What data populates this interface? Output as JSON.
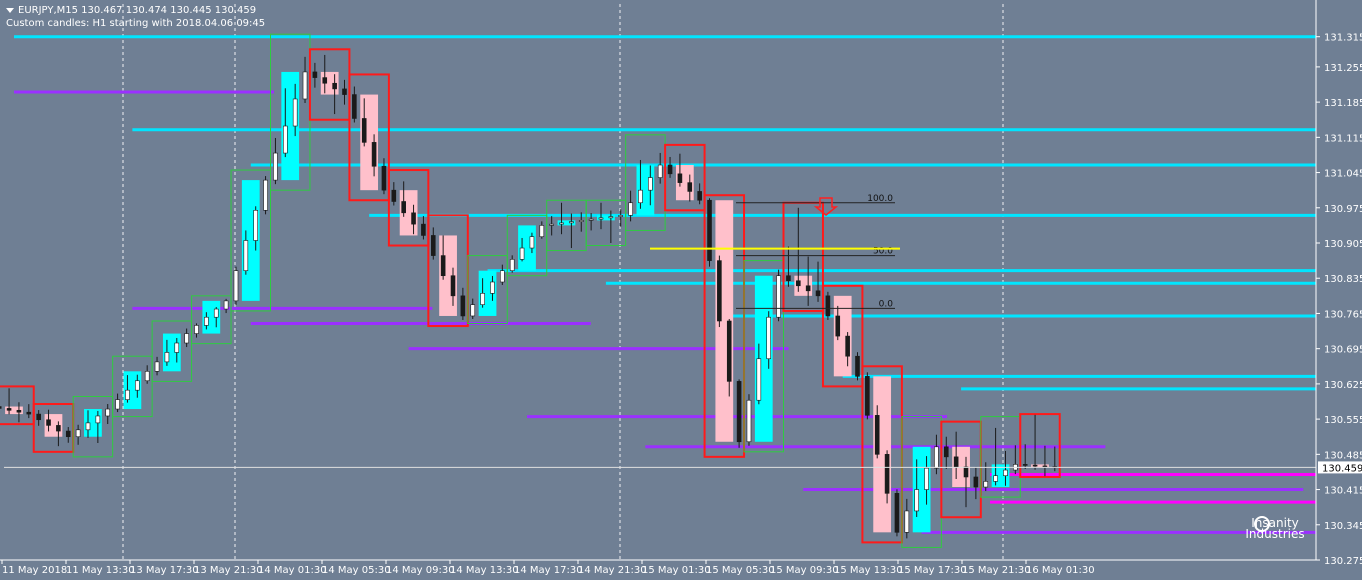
{
  "header": {
    "symbol_line": "EURJPY,M15  130.467 130.474 130.445 130.459",
    "indicator_line": "Custom candles: H1 starting with 2018.04.06 09:45"
  },
  "current_price": {
    "value": 130.459,
    "label": "130.459"
  },
  "logo": {
    "line1": "Insanity",
    "line2": "Industries"
  },
  "colors": {
    "background": "#6f7f94",
    "bull_body": "#00ffff",
    "bear_body": "#ffc0cb",
    "high_lines": "#00e5ff",
    "low_lines": "#9b30ff",
    "red_boxes": "#ff1a1a",
    "green_boxes": "#2ecc40",
    "magenta_lines": "#ff00ff",
    "fib_line": "#ffff00",
    "axis_text": "#ffffff"
  },
  "chart_data": {
    "type": "candlestick",
    "symbol": "EURJPY",
    "timeframe": "M15",
    "ylim": [
      130.275,
      131.38
    ],
    "y_ticks": [
      "131.315",
      "131.255",
      "131.185",
      "131.115",
      "131.045",
      "130.975",
      "130.905",
      "130.835",
      "130.765",
      "130.695",
      "130.625",
      "130.555",
      "130.485",
      "130.415",
      "130.345",
      "130.275"
    ],
    "x_ticks": [
      "11 May 2018",
      "11 May 13:30",
      "13 May 17:30",
      "13 May 21:30",
      "14 May 01:30",
      "14 May 05:30",
      "14 May 09:30",
      "14 May 13:30",
      "14 May 17:30",
      "14 May 21:30",
      "15 May 01:30",
      "15 May 05:30",
      "15 May 09:30",
      "15 May 13:30",
      "15 May 17:30",
      "15 May 21:30",
      "16 May 01:30"
    ],
    "grid": "vertical dashed at 13 May 17:30 / 14 May 05:30 / 15 May 05:30 / 15 May 17:30 / 16 May 01:30",
    "fibonacci": [
      {
        "level": "100.0",
        "price": 130.985
      },
      {
        "level": "50.0",
        "price": 130.88
      },
      {
        "level": "0.0",
        "price": 130.775
      }
    ],
    "h1_candles": [
      {
        "open": 130.58,
        "high": 130.62,
        "low": 130.545,
        "close": 130.565
      },
      {
        "open": 130.565,
        "high": 130.585,
        "low": 130.49,
        "close": 130.52
      },
      {
        "open": 130.52,
        "high": 130.6,
        "low": 130.48,
        "close": 130.575
      },
      {
        "open": 130.575,
        "high": 130.68,
        "low": 130.56,
        "close": 130.65
      },
      {
        "open": 130.65,
        "high": 130.75,
        "low": 130.63,
        "close": 130.725
      },
      {
        "open": 130.725,
        "high": 130.8,
        "low": 130.705,
        "close": 130.79
      },
      {
        "open": 130.79,
        "high": 131.05,
        "low": 130.77,
        "close": 131.03
      },
      {
        "open": 131.03,
        "high": 131.32,
        "low": 131.01,
        "close": 131.245
      },
      {
        "open": 131.245,
        "high": 131.29,
        "low": 131.15,
        "close": 131.2
      },
      {
        "open": 131.2,
        "high": 131.24,
        "low": 130.99,
        "close": 131.01
      },
      {
        "open": 131.01,
        "high": 131.05,
        "low": 130.9,
        "close": 130.92
      },
      {
        "open": 130.92,
        "high": 130.96,
        "low": 130.74,
        "close": 130.76
      },
      {
        "open": 130.76,
        "high": 130.88,
        "low": 130.745,
        "close": 130.85
      },
      {
        "open": 130.85,
        "high": 130.96,
        "low": 130.84,
        "close": 130.94
      },
      {
        "open": 130.94,
        "high": 130.99,
        "low": 130.89,
        "close": 130.95
      },
      {
        "open": 130.95,
        "high": 130.99,
        "low": 130.9,
        "close": 130.96
      },
      {
        "open": 130.96,
        "high": 131.12,
        "low": 130.93,
        "close": 131.06
      },
      {
        "open": 131.06,
        "high": 131.1,
        "low": 130.97,
        "close": 130.99
      },
      {
        "open": 130.99,
        "high": 131.0,
        "low": 130.48,
        "close": 130.51
      },
      {
        "open": 130.51,
        "high": 130.87,
        "low": 130.49,
        "close": 130.84
      },
      {
        "open": 130.84,
        "high": 130.985,
        "low": 130.77,
        "close": 130.8
      },
      {
        "open": 130.8,
        "high": 130.82,
        "low": 130.62,
        "close": 130.64
      },
      {
        "open": 130.64,
        "high": 130.66,
        "low": 130.31,
        "close": 130.33
      },
      {
        "open": 130.33,
        "high": 130.56,
        "low": 130.3,
        "close": 130.5
      },
      {
        "open": 130.5,
        "high": 130.55,
        "low": 130.36,
        "close": 130.42
      },
      {
        "open": 130.42,
        "high": 130.56,
        "low": 130.4,
        "close": 130.465
      },
      {
        "open": 130.465,
        "high": 130.565,
        "low": 130.44,
        "close": 130.459
      }
    ],
    "resistance_levels": [
      131.315,
      131.13,
      131.06,
      130.96,
      130.85,
      130.825,
      130.76,
      130.64,
      130.615
    ],
    "support_levels": [
      131.205,
      130.775,
      130.745,
      130.695,
      130.56,
      130.5,
      130.415,
      130.33
    ],
    "magenta_levels": [
      130.445,
      130.39
    ]
  }
}
